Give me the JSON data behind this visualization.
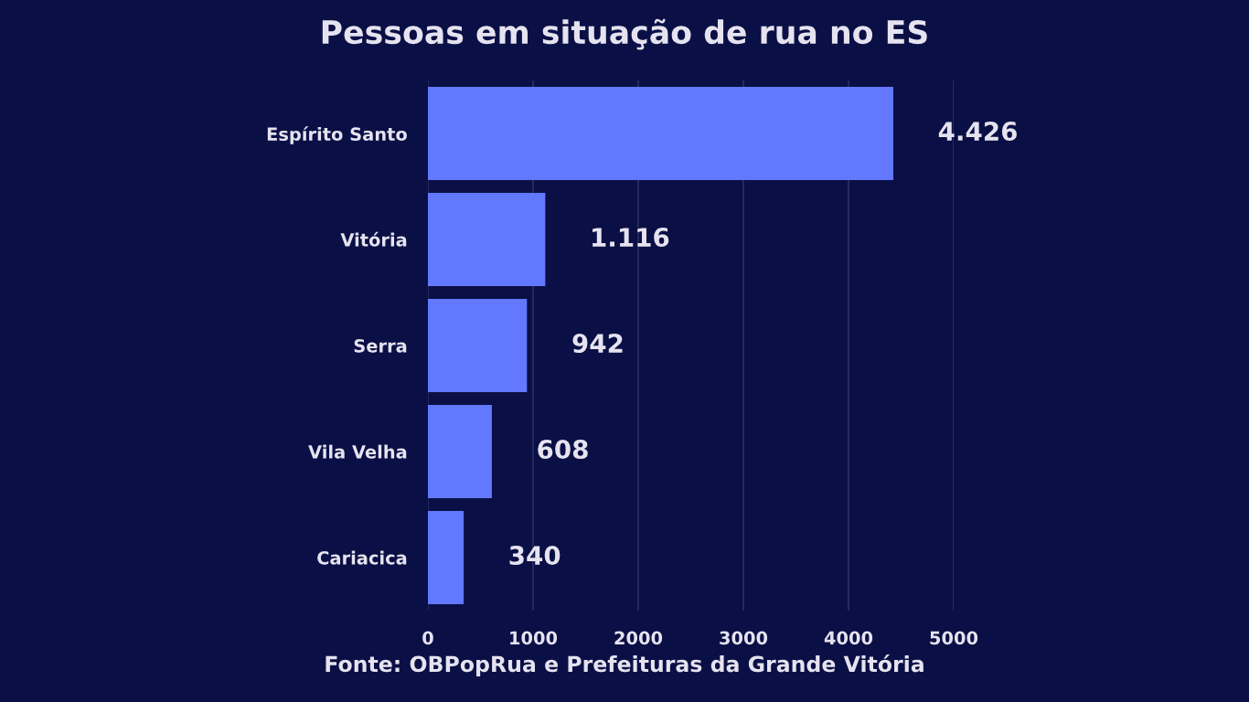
{
  "chart_data": {
    "type": "bar",
    "orientation": "horizontal",
    "title": "Pessoas em situação de rua no ES",
    "categories": [
      "Espírito Santo",
      "Vitória",
      "Serra",
      "Vila Velha",
      "Cariacica"
    ],
    "values": [
      4426,
      1116,
      942,
      608,
      340
    ],
    "value_labels": [
      "4.426",
      "1.116",
      "942",
      "608",
      "340"
    ],
    "color": "#6178ff",
    "xlim": [
      0,
      5000
    ],
    "xticks": [
      0,
      1000,
      2000,
      3000,
      4000,
      5000
    ],
    "grid": "x",
    "legend": false,
    "annotations": [
      "Fonte: OBPopRua e Prefeituras da Grande Vitória"
    ]
  }
}
